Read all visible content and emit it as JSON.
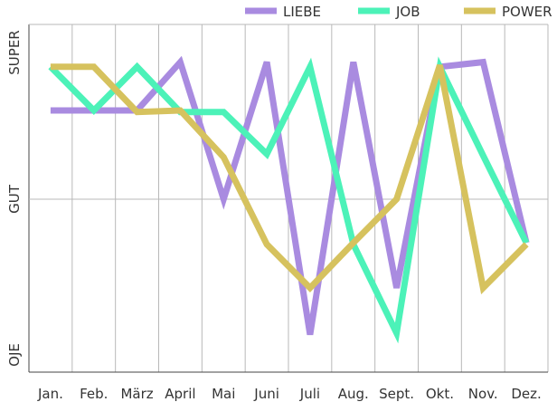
{
  "chart_data": {
    "type": "line",
    "title": "",
    "xlabel": "",
    "ylabel": "",
    "categories": [
      "Jan.",
      "Feb.",
      "März",
      "April",
      "Mai",
      "Juni",
      "Juli",
      "Aug.",
      "Sept.",
      "Okt.",
      "Nov.",
      "Dez."
    ],
    "y_ticks": [
      {
        "label": "OJE",
        "value": 0
      },
      {
        "label": "GUT",
        "value": 1
      },
      {
        "label": "SUPER",
        "value": 2
      }
    ],
    "ylim": [
      0,
      2
    ],
    "grid": true,
    "legend_position": "top-right",
    "series": [
      {
        "name": "LIEBE",
        "color": "#a98be0",
        "values": [
          1.57,
          1.57,
          1.57,
          1.88,
          1.0,
          1.88,
          0.13,
          1.88,
          0.43,
          1.85,
          1.88,
          0.72
        ]
      },
      {
        "name": "JOB",
        "color": "#4cf2b8",
        "values": [
          1.85,
          1.57,
          1.85,
          1.56,
          1.56,
          1.29,
          1.85,
          0.71,
          0.14,
          1.85,
          1.28,
          0.72
        ]
      },
      {
        "name": "POWER",
        "color": "#d6c25e",
        "values": [
          1.85,
          1.85,
          1.56,
          1.57,
          1.27,
          0.71,
          0.43,
          0.72,
          1.0,
          1.86,
          0.43,
          0.71
        ]
      }
    ]
  }
}
